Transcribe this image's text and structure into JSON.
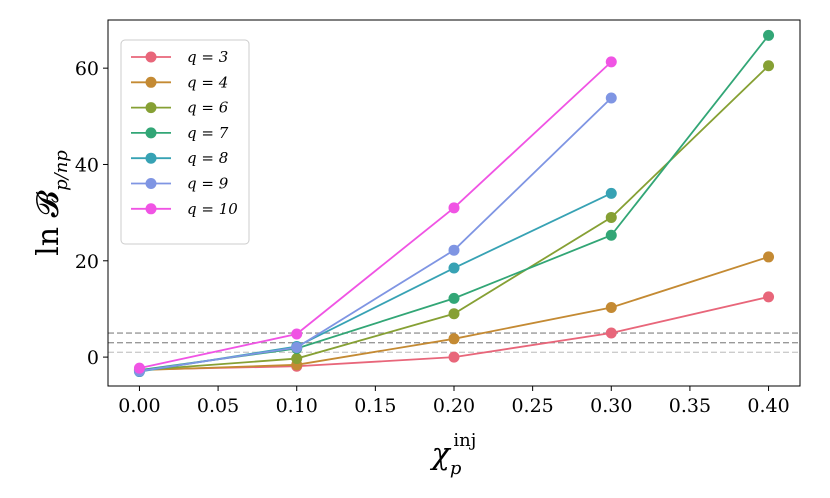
{
  "chart_data": {
    "type": "line",
    "x": [
      0.0,
      0.1,
      0.2,
      0.3,
      0.4
    ],
    "xlim": [
      -0.02,
      0.42
    ],
    "ylim": [
      -6,
      70
    ],
    "xticks": [
      "0.00",
      "0.05",
      "0.10",
      "0.15",
      "0.20",
      "0.25",
      "0.30",
      "0.35",
      "0.40"
    ],
    "yticks": [
      "0",
      "20",
      "40",
      "60"
    ],
    "xlabel": {
      "main": "χ",
      "sub": "p",
      "sup": "inj"
    },
    "ylabel": {
      "main": "ln 𝓑",
      "sub": "p/np"
    },
    "reference_lines": [
      {
        "y": 1,
        "color": "#cccccc"
      },
      {
        "y": 3,
        "color": "#999999"
      },
      {
        "y": 5,
        "color": "#999999"
      }
    ],
    "legend_position": "top-left",
    "series": [
      {
        "name": "q = 3",
        "color": "#e8667a",
        "x": [
          0.0,
          0.1,
          0.2,
          0.3,
          0.4
        ],
        "values": [
          -2.6,
          -1.9,
          0.0,
          5.0,
          12.5
        ]
      },
      {
        "name": "q = 4",
        "color": "#c48a33",
        "x": [
          0.0,
          0.1,
          0.2,
          0.3,
          0.4
        ],
        "values": [
          -2.7,
          -1.6,
          3.8,
          10.3,
          20.8
        ]
      },
      {
        "name": "q = 6",
        "color": "#86a034",
        "x": [
          0.0,
          0.1,
          0.2,
          0.3,
          0.4
        ],
        "values": [
          -2.7,
          -0.3,
          9.0,
          29.0,
          60.5
        ]
      },
      {
        "name": "q = 7",
        "color": "#32a676",
        "x": [
          0.0,
          0.1,
          0.2,
          0.3,
          0.4
        ],
        "values": [
          -2.7,
          1.8,
          12.2,
          25.3,
          66.8
        ]
      },
      {
        "name": "q = 8",
        "color": "#37a2b4",
        "x": [
          0.0,
          0.1,
          0.2,
          0.3
        ],
        "values": [
          -3.0,
          2.2,
          18.5,
          34.0
        ]
      },
      {
        "name": "q = 9",
        "color": "#7f95e3",
        "x": [
          0.0,
          0.1,
          0.2,
          0.3
        ],
        "values": [
          -2.9,
          2.0,
          22.2,
          53.8
        ]
      },
      {
        "name": "q = 10",
        "color": "#f054e4",
        "x": [
          0.0,
          0.1,
          0.2,
          0.3
        ],
        "values": [
          -2.3,
          4.8,
          31.0,
          61.3
        ]
      }
    ]
  }
}
